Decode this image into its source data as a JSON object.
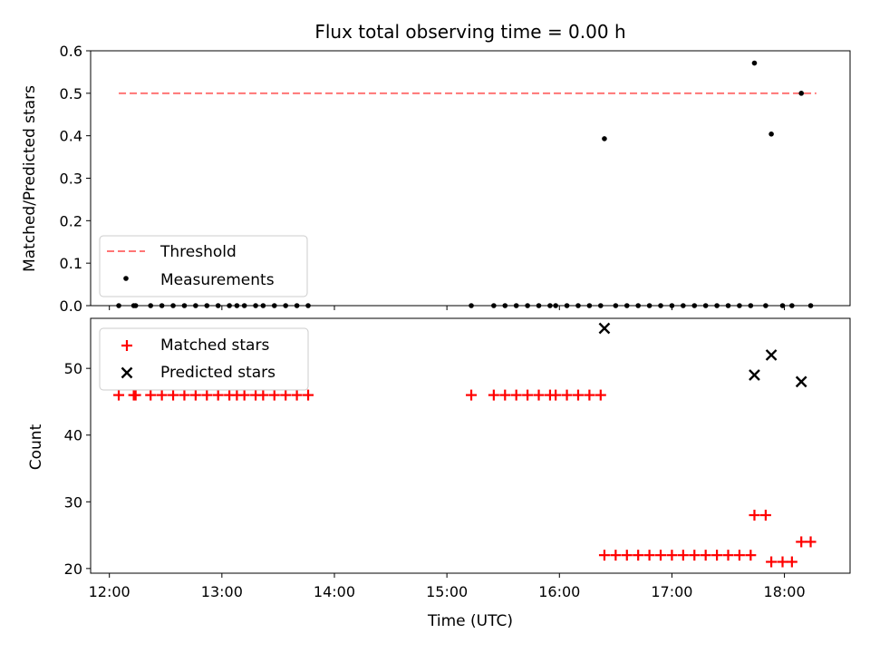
{
  "chart_data": [
    {
      "type": "scatter",
      "title": "Flux total observing time = 0.00 h",
      "ylabel": "Matched/Predicted stars",
      "xlabel": "",
      "xlim": [
        "11:50",
        "18:35"
      ],
      "ylim": [
        0,
        0.6
      ],
      "yticks": [
        "0.0",
        "0.1",
        "0.2",
        "0.3",
        "0.4",
        "0.5",
        "0.6"
      ],
      "legend": {
        "placement": "lower-left",
        "entries": [
          "Threshold",
          "Measurements"
        ]
      },
      "threshold": {
        "name": "Threshold",
        "value": 0.5,
        "x_start": "12:05",
        "x_end": "18:17",
        "color": "#ff7575"
      },
      "series": [
        {
          "name": "Measurements",
          "color": "#000000",
          "points": [
            [
              "12:05",
              0
            ],
            [
              "12:13",
              0
            ],
            [
              "12:14",
              0
            ],
            [
              "12:22",
              0
            ],
            [
              "12:28",
              0
            ],
            [
              "12:34",
              0
            ],
            [
              "12:40",
              0
            ],
            [
              "12:46",
              0
            ],
            [
              "12:52",
              0
            ],
            [
              "12:58",
              0
            ],
            [
              "13:04",
              0
            ],
            [
              "13:08",
              0
            ],
            [
              "13:12",
              0
            ],
            [
              "13:18",
              0
            ],
            [
              "13:22",
              0
            ],
            [
              "13:28",
              0
            ],
            [
              "13:34",
              0
            ],
            [
              "13:40",
              0
            ],
            [
              "13:46",
              0
            ],
            [
              "15:13",
              0
            ],
            [
              "15:25",
              0
            ],
            [
              "15:31",
              0
            ],
            [
              "15:37",
              0
            ],
            [
              "15:43",
              0
            ],
            [
              "15:49",
              0
            ],
            [
              "15:55",
              0
            ],
            [
              "15:58",
              0
            ],
            [
              "16:04",
              0
            ],
            [
              "16:10",
              0
            ],
            [
              "16:16",
              0
            ],
            [
              "16:22",
              0
            ],
            [
              "16:24",
              0.393
            ],
            [
              "16:30",
              0
            ],
            [
              "16:36",
              0
            ],
            [
              "16:42",
              0
            ],
            [
              "16:48",
              0
            ],
            [
              "16:54",
              0
            ],
            [
              "17:00",
              0
            ],
            [
              "17:06",
              0
            ],
            [
              "17:12",
              0
            ],
            [
              "17:18",
              0
            ],
            [
              "17:24",
              0
            ],
            [
              "17:30",
              0
            ],
            [
              "17:36",
              0
            ],
            [
              "17:42",
              0
            ],
            [
              "17:44",
              0.571
            ],
            [
              "17:50",
              0
            ],
            [
              "17:53",
              0.404
            ],
            [
              "17:59",
              0
            ],
            [
              "18:04",
              0
            ],
            [
              "18:09",
              0.5
            ],
            [
              "18:14",
              0
            ]
          ]
        }
      ]
    },
    {
      "type": "scatter",
      "title": "",
      "ylabel": "Count",
      "xlabel": "Time (UTC)",
      "xlim": [
        "11:50",
        "18:35"
      ],
      "ylim": [
        19.3,
        57.5
      ],
      "yticks": [
        "20",
        "30",
        "40",
        "50"
      ],
      "xticks": [
        "12:00",
        "13:00",
        "14:00",
        "15:00",
        "16:00",
        "17:00",
        "18:00"
      ],
      "legend": {
        "placement": "upper-left",
        "entries": [
          "Matched stars",
          "Predicted stars"
        ]
      },
      "series": [
        {
          "name": "Matched stars",
          "color": "#ff0000",
          "marker": "plus",
          "points": [
            [
              "12:05",
              46
            ],
            [
              "12:13",
              46
            ],
            [
              "12:14",
              46
            ],
            [
              "12:22",
              46
            ],
            [
              "12:28",
              46
            ],
            [
              "12:34",
              46
            ],
            [
              "12:40",
              46
            ],
            [
              "12:46",
              46
            ],
            [
              "12:52",
              46
            ],
            [
              "12:58",
              46
            ],
            [
              "13:04",
              46
            ],
            [
              "13:08",
              46
            ],
            [
              "13:12",
              46
            ],
            [
              "13:18",
              46
            ],
            [
              "13:22",
              46
            ],
            [
              "13:28",
              46
            ],
            [
              "13:34",
              46
            ],
            [
              "13:40",
              46
            ],
            [
              "13:46",
              46
            ],
            [
              "15:13",
              46
            ],
            [
              "15:25",
              46
            ],
            [
              "15:31",
              46
            ],
            [
              "15:37",
              46
            ],
            [
              "15:43",
              46
            ],
            [
              "15:49",
              46
            ],
            [
              "15:55",
              46
            ],
            [
              "15:58",
              46
            ],
            [
              "16:04",
              46
            ],
            [
              "16:10",
              46
            ],
            [
              "16:16",
              46
            ],
            [
              "16:22",
              46
            ],
            [
              "16:24",
              22
            ],
            [
              "16:30",
              22
            ],
            [
              "16:36",
              22
            ],
            [
              "16:42",
              22
            ],
            [
              "16:48",
              22
            ],
            [
              "16:54",
              22
            ],
            [
              "17:00",
              22
            ],
            [
              "17:06",
              22
            ],
            [
              "17:12",
              22
            ],
            [
              "17:18",
              22
            ],
            [
              "17:24",
              22
            ],
            [
              "17:30",
              22
            ],
            [
              "17:36",
              22
            ],
            [
              "17:42",
              22
            ],
            [
              "17:44",
              28
            ],
            [
              "17:50",
              28
            ],
            [
              "17:53",
              21
            ],
            [
              "17:59",
              21
            ],
            [
              "18:04",
              21
            ],
            [
              "18:09",
              24
            ],
            [
              "18:14",
              24
            ]
          ]
        },
        {
          "name": "Predicted stars",
          "color": "#000000",
          "marker": "x",
          "points": [
            [
              "16:24",
              56
            ],
            [
              "17:44",
              49
            ],
            [
              "17:53",
              52
            ],
            [
              "18:09",
              48
            ]
          ]
        }
      ]
    }
  ]
}
